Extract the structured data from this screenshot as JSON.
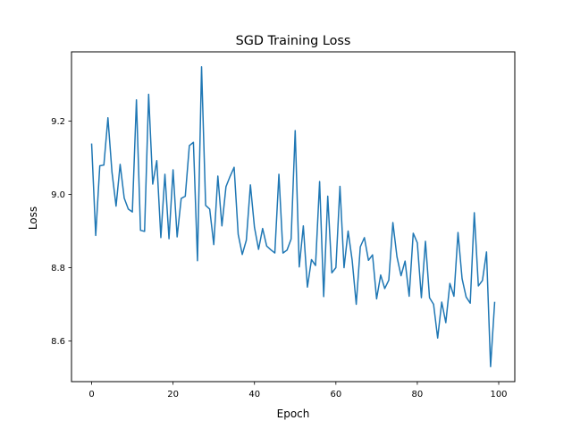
{
  "chart_data": {
    "type": "line",
    "title": "SGD Training Loss",
    "xlabel": "Epoch",
    "ylabel": "Loss",
    "xlim": [
      -4.95,
      103.95
    ],
    "ylim": [
      8.489,
      9.389
    ],
    "xticks": [
      0,
      20,
      40,
      60,
      80,
      100
    ],
    "yticks": [
      8.6,
      8.8,
      9.0,
      9.2
    ],
    "xtick_labels": [
      "0",
      "20",
      "40",
      "60",
      "80",
      "100"
    ],
    "ytick_labels": [
      "8.6",
      "8.8",
      "9.0",
      "9.2"
    ],
    "grid": false,
    "series": [
      {
        "color": "#1f77b4",
        "x": [
          0,
          1,
          2,
          3,
          4,
          5,
          6,
          7,
          8,
          9,
          10,
          11,
          12,
          13,
          14,
          15,
          16,
          17,
          18,
          19,
          20,
          21,
          22,
          23,
          24,
          25,
          26,
          27,
          28,
          29,
          30,
          31,
          32,
          33,
          34,
          35,
          36,
          37,
          38,
          39,
          40,
          41,
          42,
          43,
          44,
          45,
          46,
          47,
          48,
          49,
          50,
          51,
          52,
          53,
          54,
          55,
          56,
          57,
          58,
          59,
          60,
          61,
          62,
          63,
          64,
          65,
          66,
          67,
          68,
          69,
          70,
          71,
          72,
          73,
          74,
          75,
          76,
          77,
          78,
          79,
          80,
          81,
          82,
          83,
          84,
          85,
          86,
          87,
          88,
          89,
          90,
          91,
          92,
          93,
          94,
          95,
          96,
          97,
          98,
          99
        ],
        "y": [
          9.137,
          8.888,
          9.078,
          9.08,
          9.209,
          9.06,
          8.968,
          9.082,
          8.99,
          8.96,
          8.952,
          9.258,
          8.902,
          8.899,
          9.273,
          9.028,
          9.092,
          8.882,
          9.055,
          8.879,
          9.067,
          8.884,
          8.989,
          8.995,
          9.133,
          9.142,
          8.819,
          9.348,
          8.97,
          8.96,
          8.863,
          9.05,
          8.914,
          9.021,
          9.049,
          9.074,
          8.891,
          8.836,
          8.875,
          9.026,
          8.91,
          8.85,
          8.907,
          8.859,
          8.849,
          8.84,
          9.055,
          8.84,
          8.848,
          8.878,
          9.174,
          8.802,
          8.914,
          8.747,
          8.822,
          8.806,
          9.035,
          8.721,
          8.995,
          8.786,
          8.8,
          9.022,
          8.8,
          8.9,
          8.82,
          8.7,
          8.857,
          8.882,
          8.82,
          8.835,
          8.715,
          8.78,
          8.743,
          8.766,
          8.923,
          8.83,
          8.778,
          8.818,
          8.722,
          8.894,
          8.868,
          8.718,
          8.872,
          8.718,
          8.7,
          8.608,
          8.706,
          8.65,
          8.757,
          8.722,
          8.896,
          8.77,
          8.72,
          8.703,
          8.95,
          8.75,
          8.765,
          8.843,
          8.53,
          8.705
        ]
      }
    ]
  }
}
